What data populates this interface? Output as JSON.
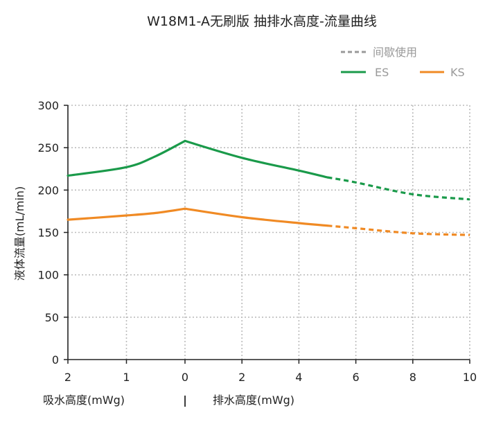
{
  "chart_data": {
    "type": "line",
    "title": "W18M1-A无刷版  抽排水高度-流量曲线",
    "ylabel": "液体流量(mL/min)",
    "ylim": [
      0,
      300
    ],
    "yticks": [
      0,
      50,
      100,
      150,
      200,
      250,
      300
    ],
    "grid": true,
    "x_ticks": [
      {
        "label": "2",
        "x": -2
      },
      {
        "label": "1",
        "x": -1
      },
      {
        "label": "0",
        "x": 0
      },
      {
        "label": "2",
        "x": 2
      },
      {
        "label": "4",
        "x": 4
      },
      {
        "label": "6",
        "x": 6
      },
      {
        "label": "8",
        "x": 8
      },
      {
        "label": "10",
        "x": 10
      }
    ],
    "x_axis_note": "negative x = suction height (mWg), positive x = discharge height (mWg)",
    "xlabel_left": "吸水高度(mWg)",
    "xlabel_separator": "|",
    "xlabel_right": "排水高度(mWg)",
    "legend": {
      "position": "top-right",
      "intermittent_label": "间歇使用",
      "intermittent_color": "#999999"
    },
    "series": [
      {
        "name": "ES",
        "color": "#1a9a4a",
        "points": [
          [
            -2,
            217
          ],
          [
            -1,
            227
          ],
          [
            -0.5,
            240
          ],
          [
            0,
            258
          ],
          [
            2,
            238
          ],
          [
            4,
            223
          ],
          [
            5,
            215
          ],
          [
            6,
            209
          ],
          [
            8,
            195
          ],
          [
            10,
            189
          ]
        ],
        "dashed_from_x": 5
      },
      {
        "name": "KS",
        "color": "#f08a24",
        "points": [
          [
            -2,
            165
          ],
          [
            -1,
            170
          ],
          [
            -0.5,
            173
          ],
          [
            0,
            178
          ],
          [
            2,
            168
          ],
          [
            4,
            161
          ],
          [
            5,
            158
          ],
          [
            6,
            155
          ],
          [
            8,
            149
          ],
          [
            10,
            147
          ]
        ],
        "dashed_from_x": 5
      }
    ]
  }
}
